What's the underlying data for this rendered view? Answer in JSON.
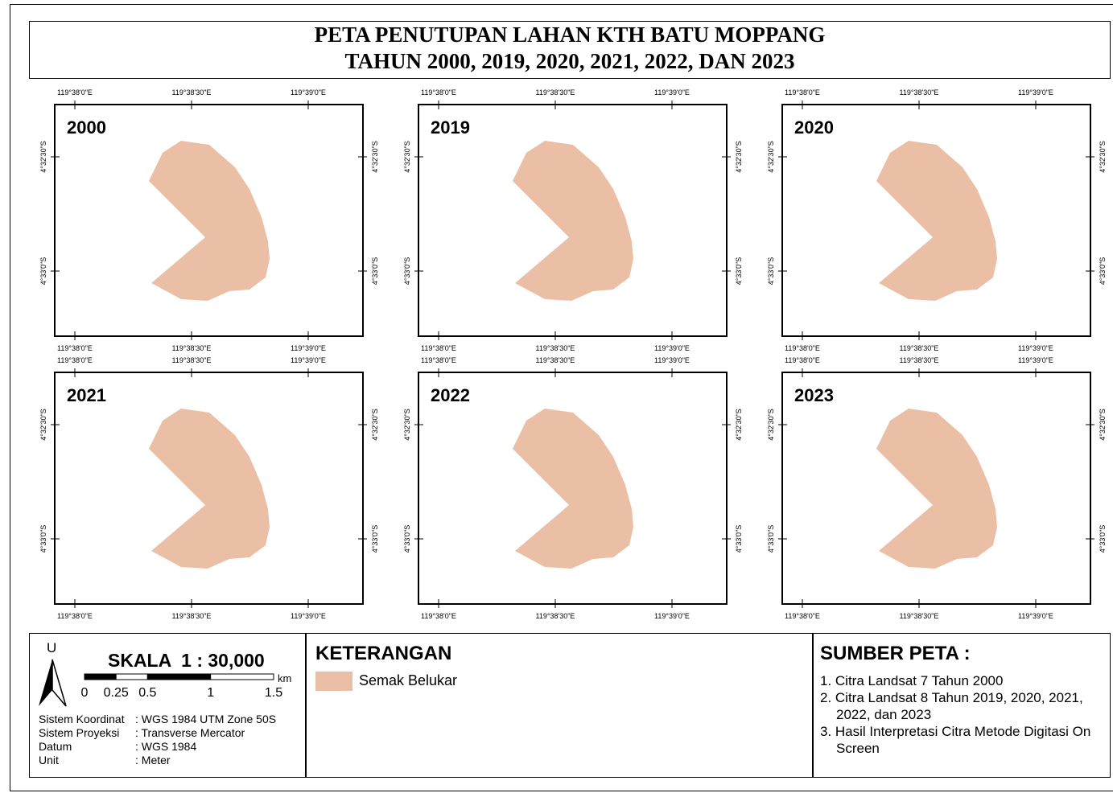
{
  "title": {
    "lines": [
      "PETA PENUTUPAN LAHAN KTH BATU MOPPANG",
      "TAHUN 2000, 2019, 2020, 2021, 2022, DAN 2023"
    ]
  },
  "maps": [
    {
      "year": "2000"
    },
    {
      "year": "2019"
    },
    {
      "year": "2020"
    },
    {
      "year": "2021"
    },
    {
      "year": "2022"
    },
    {
      "year": "2023"
    }
  ],
  "graticule": {
    "x": [
      "119°38'0\"E",
      "119°38'30\"E",
      "119°39'0\"E"
    ],
    "y": [
      "4°32'30\"S",
      "4°33'0\"S"
    ]
  },
  "scale": {
    "north": "U",
    "title": "SKALA  1 : 30,000",
    "unit": "km",
    "ticks": [
      0,
      0.25,
      0.5,
      1,
      1.5
    ]
  },
  "info": [
    {
      "label": "Sistem Koordinat",
      "value": ": WGS 1984 UTM Zone 50S"
    },
    {
      "label": "Sistem Proyeksi",
      "value": ": Transverse Mercator"
    },
    {
      "label": "Datum",
      "value": ": WGS 1984"
    },
    {
      "label": "Unit",
      "value": ": Meter"
    }
  ],
  "legend": {
    "title": "KETERANGAN",
    "items": [
      {
        "label": "Semak Belukar",
        "color": "#ebbfa5"
      }
    ]
  },
  "sources": {
    "title": "SUMBER PETA :",
    "items": [
      "1. Citra Landsat 7 Tahun 2000",
      "2. Citra Landsat 8 Tahun 2019, 2020, 2021, 2022, dan 2023",
      "3. Hasil Interpretasi Citra Metode Digitasi On Screen"
    ]
  }
}
